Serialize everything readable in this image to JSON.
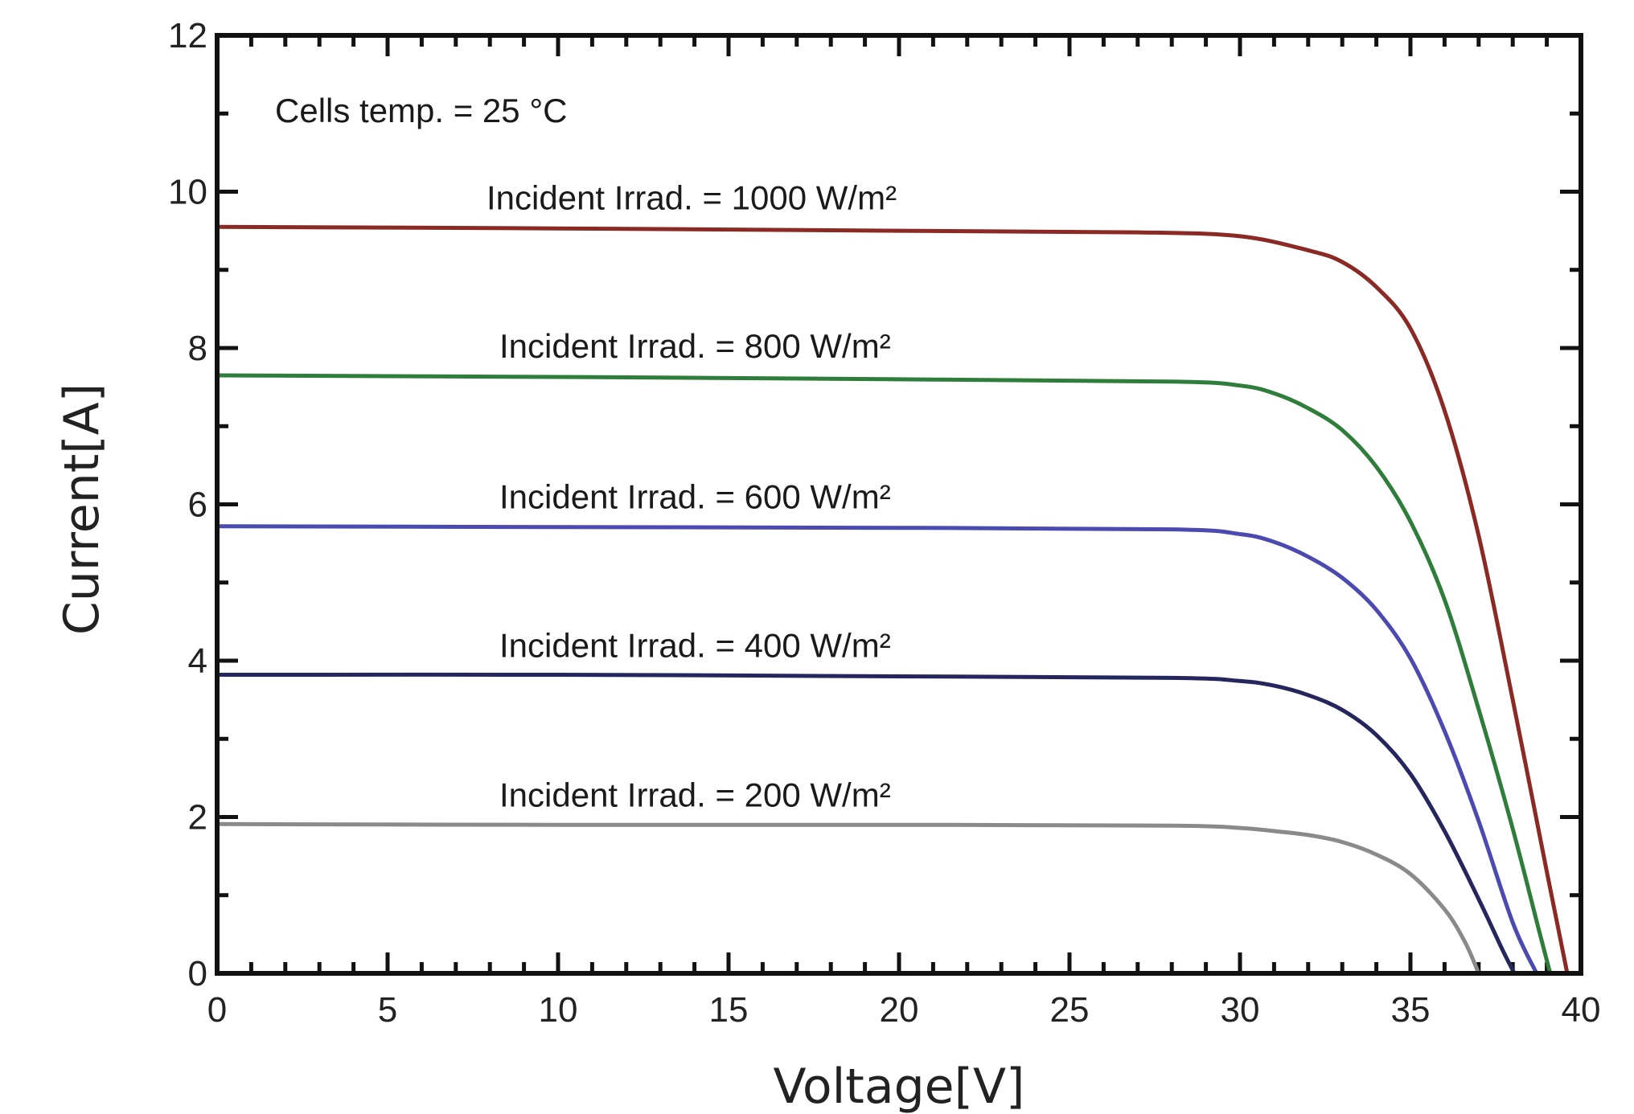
{
  "chart_data": {
    "type": "line",
    "xlabel": "Voltage[V]",
    "ylabel": "Current[A]",
    "xlim": [
      0,
      40
    ],
    "ylim": [
      0,
      12
    ],
    "x_ticks": [
      0,
      5,
      10,
      15,
      20,
      25,
      30,
      35,
      40
    ],
    "y_ticks": [
      0,
      2,
      4,
      6,
      8,
      10,
      12
    ],
    "grid": false,
    "annotations": [
      {
        "text": "Cells temp. = 25 °C"
      }
    ],
    "series": [
      {
        "name": "Incident Irrad. = 1000 W/m²",
        "color": "#8b2a24",
        "points": [
          [
            0,
            9.55
          ],
          [
            10,
            9.53
          ],
          [
            20,
            9.5
          ],
          [
            27,
            9.48
          ],
          [
            30,
            9.43
          ],
          [
            32,
            9.25
          ],
          [
            33,
            9.1
          ],
          [
            34,
            8.78
          ],
          [
            35,
            8.25
          ],
          [
            36,
            7.2
          ],
          [
            37,
            5.6
          ],
          [
            38,
            3.5
          ],
          [
            39,
            1.3
          ],
          [
            39.6,
            0
          ]
        ]
      },
      {
        "name": "Incident Irrad. = 800 W/m²",
        "color": "#2f7d3a",
        "points": [
          [
            0,
            7.65
          ],
          [
            10,
            7.63
          ],
          [
            20,
            7.6
          ],
          [
            28,
            7.57
          ],
          [
            30,
            7.52
          ],
          [
            31,
            7.42
          ],
          [
            32,
            7.23
          ],
          [
            33,
            6.95
          ],
          [
            34,
            6.48
          ],
          [
            35,
            5.78
          ],
          [
            36,
            4.78
          ],
          [
            37,
            3.38
          ],
          [
            38,
            1.85
          ],
          [
            38.8,
            0.5
          ],
          [
            39.1,
            0
          ]
        ]
      },
      {
        "name": "Incident Irrad. = 600 W/m²",
        "color": "#4b4ab0",
        "points": [
          [
            0,
            5.72
          ],
          [
            10,
            5.71
          ],
          [
            20,
            5.7
          ],
          [
            28,
            5.68
          ],
          [
            30,
            5.62
          ],
          [
            31,
            5.52
          ],
          [
            32,
            5.33
          ],
          [
            33,
            5.06
          ],
          [
            34,
            4.65
          ],
          [
            35,
            4.03
          ],
          [
            36,
            3.1
          ],
          [
            37,
            1.95
          ],
          [
            38,
            0.65
          ],
          [
            38.7,
            0
          ]
        ]
      },
      {
        "name": "Incident Irrad. = 400 W/m²",
        "color": "#26265e",
        "points": [
          [
            0,
            3.82
          ],
          [
            10,
            3.82
          ],
          [
            20,
            3.8
          ],
          [
            28,
            3.78
          ],
          [
            30,
            3.74
          ],
          [
            31,
            3.68
          ],
          [
            32,
            3.56
          ],
          [
            33,
            3.37
          ],
          [
            34,
            3.05
          ],
          [
            35,
            2.55
          ],
          [
            36,
            1.82
          ],
          [
            37,
            0.95
          ],
          [
            37.7,
            0.3
          ],
          [
            38.05,
            0
          ]
        ]
      },
      {
        "name": "Incident Irrad. = 200 W/m²",
        "color": "#8a8a8a",
        "points": [
          [
            0,
            1.91
          ],
          [
            10,
            1.9
          ],
          [
            20,
            1.9
          ],
          [
            28,
            1.89
          ],
          [
            30,
            1.86
          ],
          [
            31,
            1.82
          ],
          [
            32,
            1.77
          ],
          [
            33,
            1.68
          ],
          [
            34,
            1.52
          ],
          [
            35,
            1.27
          ],
          [
            36,
            0.82
          ],
          [
            36.6,
            0.4
          ],
          [
            37.0,
            0
          ]
        ]
      }
    ]
  }
}
